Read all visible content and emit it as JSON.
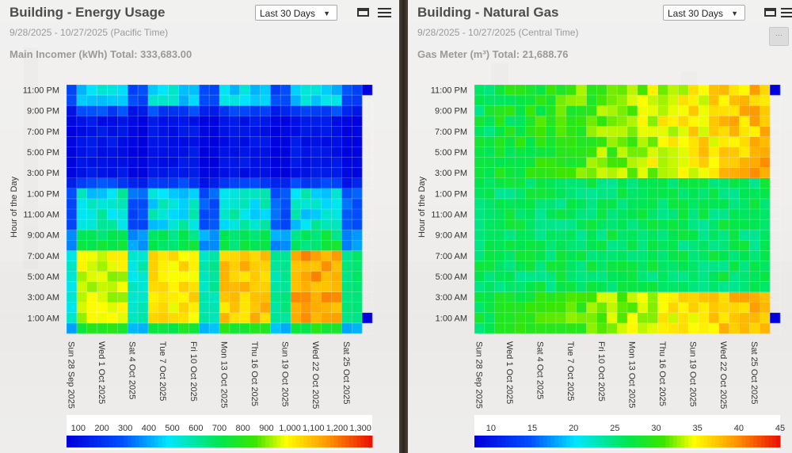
{
  "panels": [
    {
      "title": "Building - Energy Usage",
      "date_range": "9/28/2025 - 10/27/2025 (Pacific Time)",
      "total": "Main Incomer (kWh) Total: 333,683.00",
      "period_select": "Last 30 Days"
    },
    {
      "title": "Building - Natural Gas",
      "date_range": "9/28/2025 - 10/27/2025 (Central Time)",
      "total": "Gas Meter (m³) Total: 21,688.76",
      "period_select": "Last 30 Days"
    }
  ],
  "icons": {
    "window": "window-icon",
    "menu": "hamburger-menu-icon",
    "more": "ellipsis-icon"
  },
  "more_label": "···",
  "chart_data": [
    {
      "type": "heatmap",
      "ylabel": "Hour of the Day",
      "y_ticks": [
        "11:00 PM",
        "9:00 PM",
        "7:00 PM",
        "5:00 PM",
        "3:00 PM",
        "1:00 PM",
        "11:00 AM",
        "9:00 AM",
        "7:00 AM",
        "5:00 AM",
        "3:00 AM",
        "1:00 AM"
      ],
      "x_ticks": [
        "Sun 28 Sep 2025",
        "Wed 1 Oct 2025",
        "Sat 4 Oct 2025",
        "Tue 7 Oct 2025",
        "Fri 10 Oct 2025",
        "Mon 13 Oct 2025",
        "Thu 16 Oct 2025",
        "Sun 19 Oct 2025",
        "Wed 22 Oct 2025",
        "Sat 25 Oct 2025"
      ],
      "x_tick_days": [
        0,
        3,
        6,
        9,
        12,
        15,
        18,
        21,
        24,
        27
      ],
      "days": 30,
      "hours": 24,
      "colorbar": {
        "ticks": [
          "100",
          "200",
          "300",
          "400",
          "500",
          "600",
          "700",
          "800",
          "900",
          "1,000",
          "1,100",
          "1,200",
          "1,300"
        ],
        "range": [
          50,
          1350
        ]
      },
      "shape": "electric",
      "approx_range": [
        50,
        1350
      ]
    },
    {
      "type": "heatmap",
      "ylabel": "Hour of the Day",
      "y_ticks": [
        "11:00 PM",
        "9:00 PM",
        "7:00 PM",
        "5:00 PM",
        "3:00 PM",
        "1:00 PM",
        "11:00 AM",
        "9:00 AM",
        "7:00 AM",
        "5:00 AM",
        "3:00 AM",
        "1:00 AM"
      ],
      "x_ticks": [
        "Sun 28 Sep 2025",
        "Wed 1 Oct 2025",
        "Sat 4 Oct 2025",
        "Tue 7 Oct 2025",
        "Fri 10 Oct 2025",
        "Mon 13 Oct 2025",
        "Thu 16 Oct 2025",
        "Sun 19 Oct 2025",
        "Wed 22 Oct 2025",
        "Sat 25 Oct 2025"
      ],
      "x_tick_days": [
        0,
        3,
        6,
        9,
        12,
        15,
        18,
        21,
        24,
        27
      ],
      "days": 30,
      "hours": 24,
      "colorbar": {
        "ticks": [
          "10",
          "15",
          "20",
          "25",
          "30",
          "35",
          "40",
          "45"
        ],
        "range": [
          8,
          45
        ]
      },
      "shape": "gas",
      "approx_range": [
        10,
        45
      ]
    }
  ]
}
